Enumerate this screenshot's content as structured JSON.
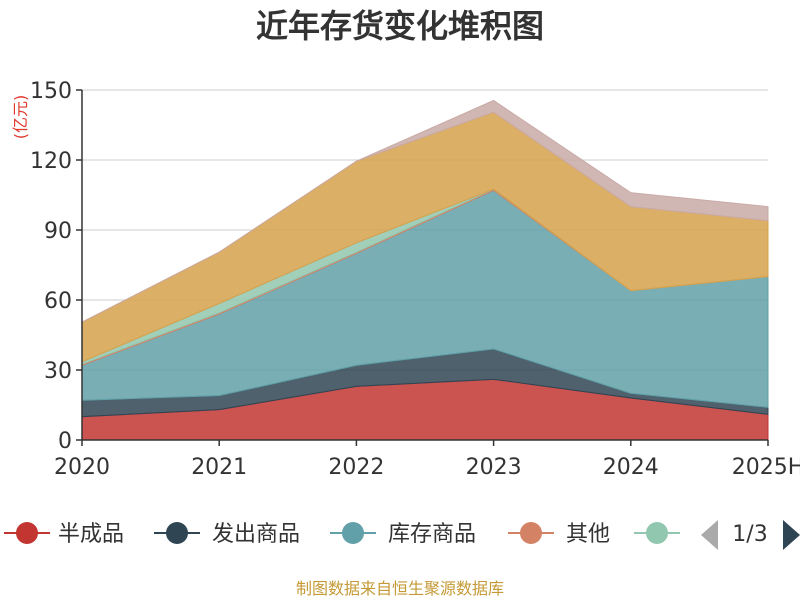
{
  "title": "近年存货变化堆积图",
  "unit": "(亿元)",
  "source": "制图数据来自恒生聚源数据库",
  "legend": {
    "items": [
      {
        "label": "半成品",
        "color": "#c23531"
      },
      {
        "label": "发出商品",
        "color": "#2f4554"
      },
      {
        "label": "库存商品",
        "color": "#61a0a8"
      },
      {
        "label": "其他",
        "color": "#d48265"
      },
      {
        "label": "",
        "color": "#91c7ae"
      }
    ],
    "page": "1/3"
  },
  "chart_data": {
    "type": "area",
    "stacked": true,
    "x": [
      "2020",
      "2021",
      "2022",
      "2023",
      "2024",
      "2025H"
    ],
    "ylim": [
      0,
      150
    ],
    "yticks": [
      0,
      30,
      60,
      90,
      120,
      150
    ],
    "grid": true,
    "legend_position": "bottom",
    "series": [
      {
        "name": "半成品",
        "color": "#c23531",
        "values": [
          10,
          13,
          23,
          26,
          18,
          11
        ]
      },
      {
        "name": "发出商品",
        "color": "#2f4554",
        "values": [
          7,
          6,
          9,
          13,
          2,
          3
        ]
      },
      {
        "name": "库存商品",
        "color": "#61a0a8",
        "values": [
          15,
          35,
          48,
          68,
          44,
          56
        ]
      },
      {
        "name": "其他",
        "color": "#d48265",
        "values": [
          0.5,
          0.5,
          0.5,
          0.5,
          0,
          0
        ]
      },
      {
        "name": "",
        "color": "#91c7ae",
        "values": [
          1,
          4,
          4,
          0,
          0,
          0
        ]
      },
      {
        "name": "",
        "color": "#d6a14b",
        "values": [
          17,
          22,
          35,
          33,
          36,
          24
        ]
      },
      {
        "name": "",
        "color": "#c9aaa6",
        "values": [
          0,
          0,
          0,
          5,
          6,
          6
        ]
      }
    ]
  }
}
